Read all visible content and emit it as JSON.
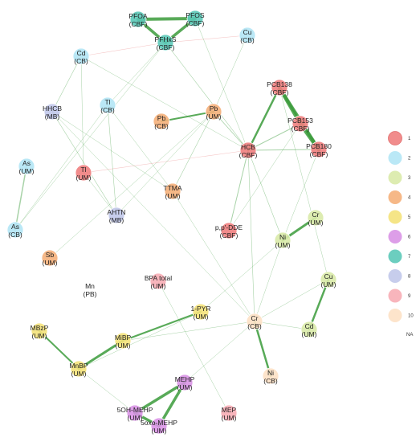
{
  "network": {
    "nodes": [
      {
        "id": "PFOA",
        "name": "PFOA",
        "src": "(CBF)",
        "cluster": 7
      },
      {
        "id": "PFOS",
        "name": "PFOS",
        "src": "(CBF)",
        "cluster": 7
      },
      {
        "id": "PFHxS",
        "name": "PFHxS",
        "src": "(CBF)",
        "cluster": 7
      },
      {
        "id": "Cu_CB",
        "name": "Cu",
        "src": "(CB)",
        "cluster": 2
      },
      {
        "id": "Cd_CB",
        "name": "Cd",
        "src": "(CB)",
        "cluster": 2
      },
      {
        "id": "Tl_CB",
        "name": "Tl",
        "src": "(CB)",
        "cluster": 2
      },
      {
        "id": "HHCB",
        "name": "HHCB",
        "src": "(MB)",
        "cluster": 8
      },
      {
        "id": "PCB138",
        "name": "PCB138",
        "src": "(CBF)",
        "cluster": 1
      },
      {
        "id": "PCB153",
        "name": "PCB153",
        "src": "(CBF)",
        "cluster": 1
      },
      {
        "id": "PCB180",
        "name": "PCB180",
        "src": "(CBF)",
        "cluster": 1
      },
      {
        "id": "HCB",
        "name": "HCB",
        "src": "(CBF)",
        "cluster": 1
      },
      {
        "id": "Pb_CB",
        "name": "Pb",
        "src": "(CB)",
        "cluster": 4
      },
      {
        "id": "Pb_UM",
        "name": "Pb",
        "src": "(UM)",
        "cluster": 4
      },
      {
        "id": "As_UM",
        "name": "As",
        "src": "(UM)",
        "cluster": 2
      },
      {
        "id": "Tl_UM",
        "name": "Tl",
        "src": "(UM)",
        "cluster": 1
      },
      {
        "id": "TTMA",
        "name": "TTMA",
        "src": "(UM)",
        "cluster": 4
      },
      {
        "id": "AHTN",
        "name": "AHTN",
        "src": "(MB)",
        "cluster": 8
      },
      {
        "id": "As_CB",
        "name": "As",
        "src": "(CB)",
        "cluster": 2
      },
      {
        "id": "ppDDE",
        "name": "p,p'-DDE",
        "src": "(CBF)",
        "cluster": 1
      },
      {
        "id": "Cr_UM",
        "name": "Cr",
        "src": "(UM)",
        "cluster": 3
      },
      {
        "id": "Ni_UM",
        "name": "Ni",
        "src": "(UM)",
        "cluster": 3
      },
      {
        "id": "Sb_UM",
        "name": "Sb",
        "src": "(UM)",
        "cluster": 4
      },
      {
        "id": "Mn_PB",
        "name": "Mn",
        "src": "(PB)",
        "cluster": null
      },
      {
        "id": "BPA",
        "name": "BPA total",
        "src": "(UM)",
        "cluster": 9
      },
      {
        "id": "Cu_UM",
        "name": "Cu",
        "src": "(UM)",
        "cluster": 3
      },
      {
        "id": "PYR",
        "name": "1-PYR",
        "src": "(UM)",
        "cluster": 5
      },
      {
        "id": "Cr_CB",
        "name": "Cr",
        "src": "(CB)",
        "cluster": 10
      },
      {
        "id": "Cd_UM",
        "name": "Cd",
        "src": "(UM)",
        "cluster": 3
      },
      {
        "id": "MBzP",
        "name": "MBzP",
        "src": "(UM)",
        "cluster": 5
      },
      {
        "id": "MiBP",
        "name": "MiBP",
        "src": "(UM)",
        "cluster": 5
      },
      {
        "id": "MnBP",
        "name": "MnBP",
        "src": "(UM)",
        "cluster": 5
      },
      {
        "id": "Ni_CB",
        "name": "Ni",
        "src": "(CB)",
        "cluster": 10
      },
      {
        "id": "MEHP",
        "name": "MEHP",
        "src": "(UM)",
        "cluster": 6
      },
      {
        "id": "OH5",
        "name": "5OH-MEHP",
        "src": "(UM)",
        "cluster": 6
      },
      {
        "id": "oxo5",
        "name": "5oxo-MEHP",
        "src": "(UM)",
        "cluster": 6
      },
      {
        "id": "MEP",
        "name": "MEP",
        "src": "(UM)",
        "cluster": 9
      }
    ],
    "edges": [
      {
        "from": "PFOA",
        "to": "PFOS",
        "w": 4,
        "sign": "pos"
      },
      {
        "from": "PFOA",
        "to": "PFHxS",
        "w": 3.5,
        "sign": "pos"
      },
      {
        "from": "PFOS",
        "to": "PFHxS",
        "w": 3.5,
        "sign": "pos"
      },
      {
        "from": "PFHxS",
        "to": "Cu_CB",
        "w": 0.6,
        "sign": "neg"
      },
      {
        "from": "PFHxS",
        "to": "Cd_CB",
        "w": 0.6,
        "sign": "neg"
      },
      {
        "from": "PFHxS",
        "to": "HCB",
        "w": 0.6,
        "sign": "pos"
      },
      {
        "from": "PFHxS",
        "to": "Tl_CB",
        "w": 0.5,
        "sign": "pos"
      },
      {
        "from": "PFHxS",
        "to": "As_CB",
        "w": 0.5,
        "sign": "pos"
      },
      {
        "from": "PFOS",
        "to": "HCB",
        "w": 0.5,
        "sign": "pos"
      },
      {
        "from": "Cu_CB",
        "to": "Pb_UM",
        "w": 0.5,
        "sign": "pos"
      },
      {
        "from": "Cd_CB",
        "to": "HHCB",
        "w": 0.6,
        "sign": "pos"
      },
      {
        "from": "Cd_CB",
        "to": "Tl_UM",
        "w": 0.5,
        "sign": "pos"
      },
      {
        "from": "Cd_CB",
        "to": "HCB",
        "w": 0.5,
        "sign": "pos"
      },
      {
        "from": "Tl_CB",
        "to": "AHTN",
        "w": 0.6,
        "sign": "pos"
      },
      {
        "from": "Tl_CB",
        "to": "TTMA",
        "w": 0.5,
        "sign": "pos"
      },
      {
        "from": "HHCB",
        "to": "AHTN",
        "w": 0.6,
        "sign": "pos"
      },
      {
        "from": "HHCB",
        "to": "TTMA",
        "w": 0.5,
        "sign": "pos"
      },
      {
        "from": "HHCB",
        "to": "Cr_CB",
        "w": 0.5,
        "sign": "pos"
      },
      {
        "from": "PCB138",
        "to": "PCB153",
        "w": 4.5,
        "sign": "pos"
      },
      {
        "from": "PCB138",
        "to": "PCB180",
        "w": 4,
        "sign": "pos"
      },
      {
        "from": "PCB153",
        "to": "PCB180",
        "w": 5,
        "sign": "pos"
      },
      {
        "from": "PCB138",
        "to": "HCB",
        "w": 2.5,
        "sign": "pos"
      },
      {
        "from": "PCB153",
        "to": "HCB",
        "w": 1,
        "sign": "pos"
      },
      {
        "from": "PCB180",
        "to": "HCB",
        "w": 1,
        "sign": "pos"
      },
      {
        "from": "HCB",
        "to": "ppDDE",
        "w": 1,
        "sign": "pos"
      },
      {
        "from": "HCB",
        "to": "Tl_UM",
        "w": 0.6,
        "sign": "neg"
      },
      {
        "from": "HCB",
        "to": "Cr_CB",
        "w": 0.6,
        "sign": "pos"
      },
      {
        "from": "HCB",
        "to": "Ni_UM",
        "w": 0.6,
        "sign": "pos"
      },
      {
        "from": "HCB",
        "to": "Pb_UM",
        "w": 0.8,
        "sign": "pos"
      },
      {
        "from": "PCB180",
        "to": "Ni_UM",
        "w": 0.5,
        "sign": "pos"
      },
      {
        "from": "PCB153",
        "to": "ppDDE",
        "w": 0.5,
        "sign": "pos"
      },
      {
        "from": "PCB138",
        "to": "Cu_UM",
        "w": 0.5,
        "sign": "pos"
      },
      {
        "from": "Pb_CB",
        "to": "Pb_UM",
        "w": 2,
        "sign": "pos"
      },
      {
        "from": "Pb_UM",
        "to": "TTMA",
        "w": 0.6,
        "sign": "pos"
      },
      {
        "from": "Pb_UM",
        "to": "AHTN",
        "w": 0.5,
        "sign": "pos"
      },
      {
        "from": "As_UM",
        "to": "As_CB",
        "w": 1.5,
        "sign": "pos"
      },
      {
        "from": "Tl_UM",
        "to": "AHTN",
        "w": 0.5,
        "sign": "pos"
      },
      {
        "from": "TTMA",
        "to": "Cr_CB",
        "w": 0.5,
        "sign": "pos"
      },
      {
        "from": "Cr_UM",
        "to": "Ni_UM",
        "w": 3,
        "sign": "pos"
      },
      {
        "from": "Ni_UM",
        "to": "PYR",
        "w": 0.5,
        "sign": "pos"
      },
      {
        "from": "Ni_UM",
        "to": "Cr_CB",
        "w": 0.5,
        "sign": "pos"
      },
      {
        "from": "Cu_UM",
        "to": "Cd_UM",
        "w": 2.5,
        "sign": "pos"
      },
      {
        "from": "Cu_UM",
        "to": "Cr_CB",
        "w": 0.5,
        "sign": "pos"
      },
      {
        "from": "Cr_CB",
        "to": "Ni_CB",
        "w": 2.5,
        "sign": "pos"
      },
      {
        "from": "Cr_CB",
        "to": "MiBP",
        "w": 0.5,
        "sign": "pos"
      },
      {
        "from": "Cr_CB",
        "to": "Cd_UM",
        "w": 0.5,
        "sign": "pos"
      },
      {
        "from": "Cr_CB",
        "to": "MEHP",
        "w": 0.5,
        "sign": "pos"
      },
      {
        "from": "PYR",
        "to": "MiBP",
        "w": 2,
        "sign": "pos"
      },
      {
        "from": "PYR",
        "to": "MnBP",
        "w": 0.5,
        "sign": "pos"
      },
      {
        "from": "BPA",
        "to": "MEP",
        "w": 0.5,
        "sign": "pos"
      },
      {
        "from": "MBzP",
        "to": "MnBP",
        "w": 2,
        "sign": "pos"
      },
      {
        "from": "MiBP",
        "to": "MnBP",
        "w": 3,
        "sign": "pos"
      },
      {
        "from": "MnBP",
        "to": "OH5",
        "w": 0.5,
        "sign": "pos"
      },
      {
        "from": "MEHP",
        "to": "OH5",
        "w": 3.5,
        "sign": "pos"
      },
      {
        "from": "MEHP",
        "to": "oxo5",
        "w": 3.5,
        "sign": "pos"
      },
      {
        "from": "OH5",
        "to": "oxo5",
        "w": 3.5,
        "sign": "pos"
      },
      {
        "from": "Sb_UM",
        "to": "Pb_UM",
        "w": 0.5,
        "sign": "pos"
      },
      {
        "from": "Tl_CB",
        "to": "As_CB",
        "w": 0.5,
        "sign": "pos"
      }
    ]
  },
  "legend": {
    "items": [
      {
        "label": "1",
        "color": "#f08080"
      },
      {
        "label": "2",
        "color": "#b3e5f5"
      },
      {
        "label": "3",
        "color": "#d9eaa9"
      },
      {
        "label": "4",
        "color": "#f5b07a"
      },
      {
        "label": "5",
        "color": "#f4e27a"
      },
      {
        "label": "6",
        "color": "#d993e6"
      },
      {
        "label": "7",
        "color": "#5cc9b8"
      },
      {
        "label": "8",
        "color": "#c1c8ea"
      },
      {
        "label": "9",
        "color": "#f7adb5"
      },
      {
        "label": "10",
        "color": "#fde1c5"
      }
    ],
    "na_label": "NA"
  },
  "colors": {
    "positive_edge": "#3b9b3b",
    "negative_edge": "#e88080"
  }
}
